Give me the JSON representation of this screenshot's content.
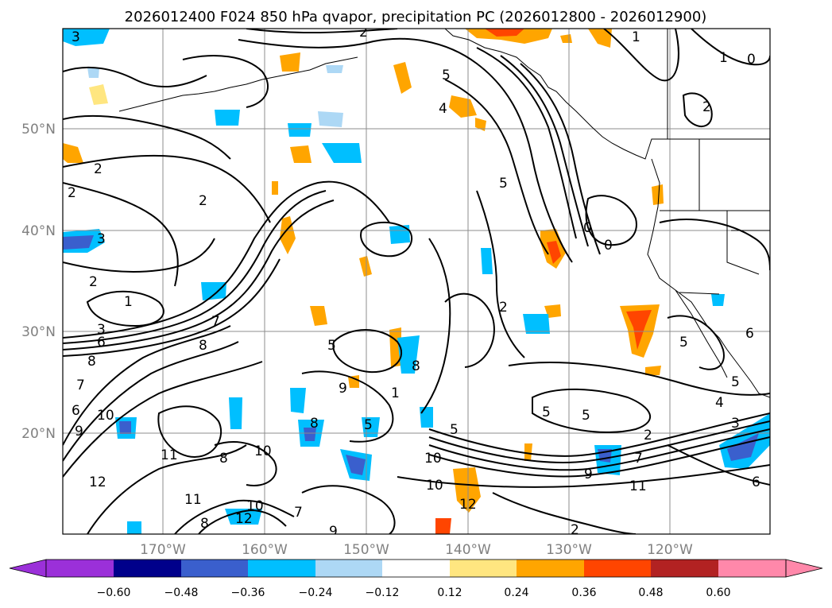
{
  "map": {
    "title": "2026012400 F024 850 hPa qvapor, precipitation PC (2026012800 - 2026012900)",
    "lon_labels": [
      "170°W",
      "160°W",
      "150°W",
      "140°W",
      "130°W",
      "120°W"
    ],
    "lat_labels": [
      "50°N",
      "40°N",
      "30°N",
      "20°N"
    ],
    "contour_labels": [
      "3",
      "2",
      "1",
      "0",
      "5",
      "4",
      "2",
      "2",
      "3",
      "2",
      "1",
      "2",
      "3",
      "8",
      "6",
      "8",
      "7",
      "6",
      "10",
      "9",
      "11",
      "12",
      "11",
      "8",
      "10",
      "8",
      "5",
      "9",
      "1",
      "8",
      "5",
      "10",
      "10",
      "12",
      "7",
      "9",
      "2",
      "5",
      "5",
      "5",
      "4",
      "3",
      "2",
      "7",
      "9",
      "11",
      "6",
      "5",
      "0",
      "0",
      "2",
      "1",
      "6",
      "5",
      "5",
      "2",
      "7",
      "12",
      "10",
      "8"
    ],
    "colorbar": {
      "ticks": [
        "−0.60",
        "−0.48",
        "−0.36",
        "−0.24",
        "−0.12",
        "0.12",
        "0.24",
        "0.36",
        "0.48",
        "0.60"
      ],
      "colors": [
        "#9b30d9",
        "#00008b",
        "#3a5fcd",
        "#00bfff",
        "#add8f5",
        "#ffffff",
        "#ffe680",
        "#ffa500",
        "#ff4500",
        "#b22222",
        "#ff88aa"
      ]
    }
  }
}
